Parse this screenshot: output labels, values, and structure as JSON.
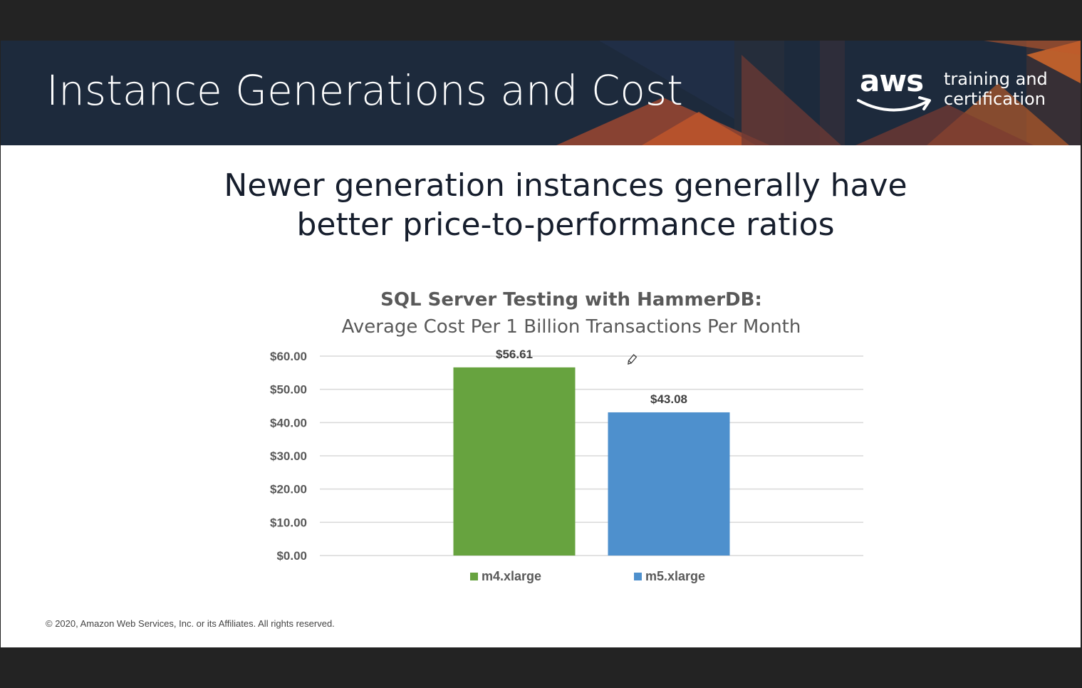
{
  "slide": {
    "title": "Instance Generations and Cost",
    "logo": {
      "wordmark": "aws",
      "tagline_line1": "training and",
      "tagline_line2": "certification",
      "icon": "aws-smile-arrow-icon"
    },
    "subtitle_line1": "Newer generation instances generally have",
    "subtitle_line2": "better price-to-performance ratios",
    "copyright": "© 2020, Amazon Web Services, Inc. or its Affiliates. All rights reserved.",
    "colors": {
      "header_bg": "#1d2a3c",
      "accent_orange": "#e8702a"
    }
  },
  "chart_data": {
    "type": "bar",
    "title": "SQL Server Testing with HammerDB:",
    "subtitle": "Average Cost Per 1 Billion Transactions Per Month",
    "categories": [
      "m4.xlarge",
      "m5.xlarge"
    ],
    "values": [
      56.61,
      43.08
    ],
    "value_labels": [
      "$56.61",
      "$43.08"
    ],
    "colors": [
      "#67a33f",
      "#4e90cd"
    ],
    "ylim": [
      0,
      60
    ],
    "yticks": [
      0,
      10,
      20,
      30,
      40,
      50,
      60
    ],
    "ytick_labels": [
      "$0.00",
      "$10.00",
      "$20.00",
      "$30.00",
      "$40.00",
      "$50.00",
      "$60.00"
    ],
    "xlabel": "",
    "ylabel": "",
    "grid": true,
    "legend": {
      "position": "bottom",
      "entries": [
        "m4.xlarge",
        "m5.xlarge"
      ]
    }
  }
}
